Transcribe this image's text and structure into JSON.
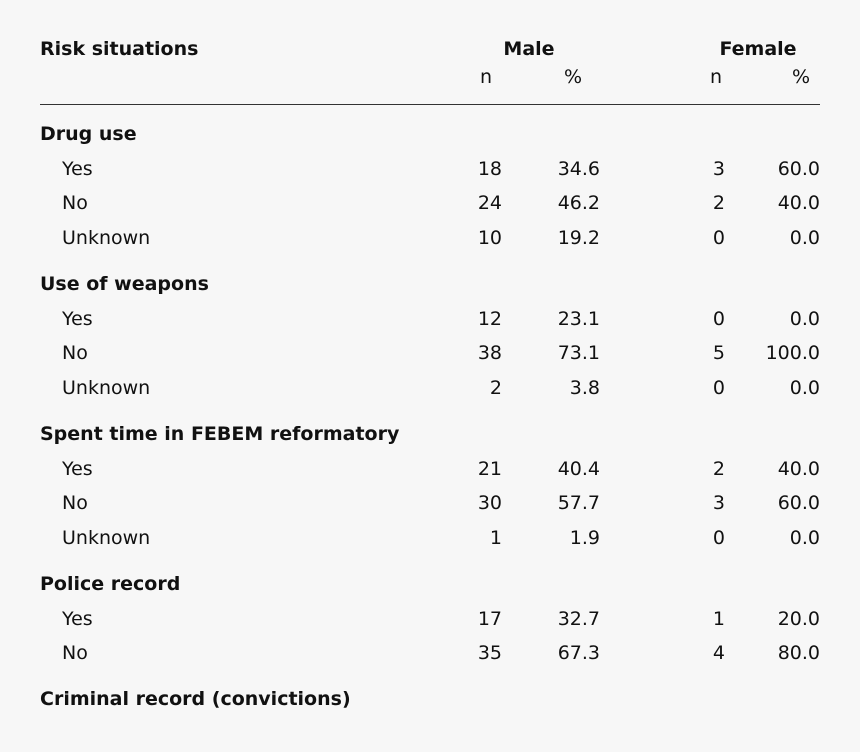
{
  "header": {
    "risk_label": "Risk situations",
    "male_label": "Male",
    "female_label": "Female",
    "n_label": "n",
    "pct_label": "%"
  },
  "sections": [
    {
      "title": "Drug use",
      "rows": [
        {
          "label": "Yes",
          "male_n": "18",
          "male_pct": "34.6",
          "female_n": "3",
          "female_pct": "60.0"
        },
        {
          "label": "No",
          "male_n": "24",
          "male_pct": "46.2",
          "female_n": "2",
          "female_pct": "40.0"
        },
        {
          "label": "Unknown",
          "male_n": "10",
          "male_pct": "19.2",
          "female_n": "0",
          "female_pct": "0.0"
        }
      ]
    },
    {
      "title": "Use of weapons",
      "rows": [
        {
          "label": "Yes",
          "male_n": "12",
          "male_pct": "23.1",
          "female_n": "0",
          "female_pct": "0.0"
        },
        {
          "label": "No",
          "male_n": "38",
          "male_pct": "73.1",
          "female_n": "5",
          "female_pct": "100.0"
        },
        {
          "label": "Unknown",
          "male_n": "2",
          "male_pct": "3.8",
          "female_n": "0",
          "female_pct": "0.0"
        }
      ]
    },
    {
      "title": "Spent time in FEBEM reformatory",
      "rows": [
        {
          "label": "Yes",
          "male_n": "21",
          "male_pct": "40.4",
          "female_n": "2",
          "female_pct": "40.0"
        },
        {
          "label": "No",
          "male_n": "30",
          "male_pct": "57.7",
          "female_n": "3",
          "female_pct": "60.0"
        },
        {
          "label": "Unknown",
          "male_n": "1",
          "male_pct": "1.9",
          "female_n": "0",
          "female_pct": "0.0"
        }
      ]
    },
    {
      "title": "Police record",
      "rows": [
        {
          "label": "Yes",
          "male_n": "17",
          "male_pct": "32.7",
          "female_n": "1",
          "female_pct": "20.0"
        },
        {
          "label": "No",
          "male_n": "35",
          "male_pct": "67.3",
          "female_n": "4",
          "female_pct": "80.0"
        }
      ]
    },
    {
      "title": "Criminal record (convictions)",
      "rows": []
    }
  ]
}
